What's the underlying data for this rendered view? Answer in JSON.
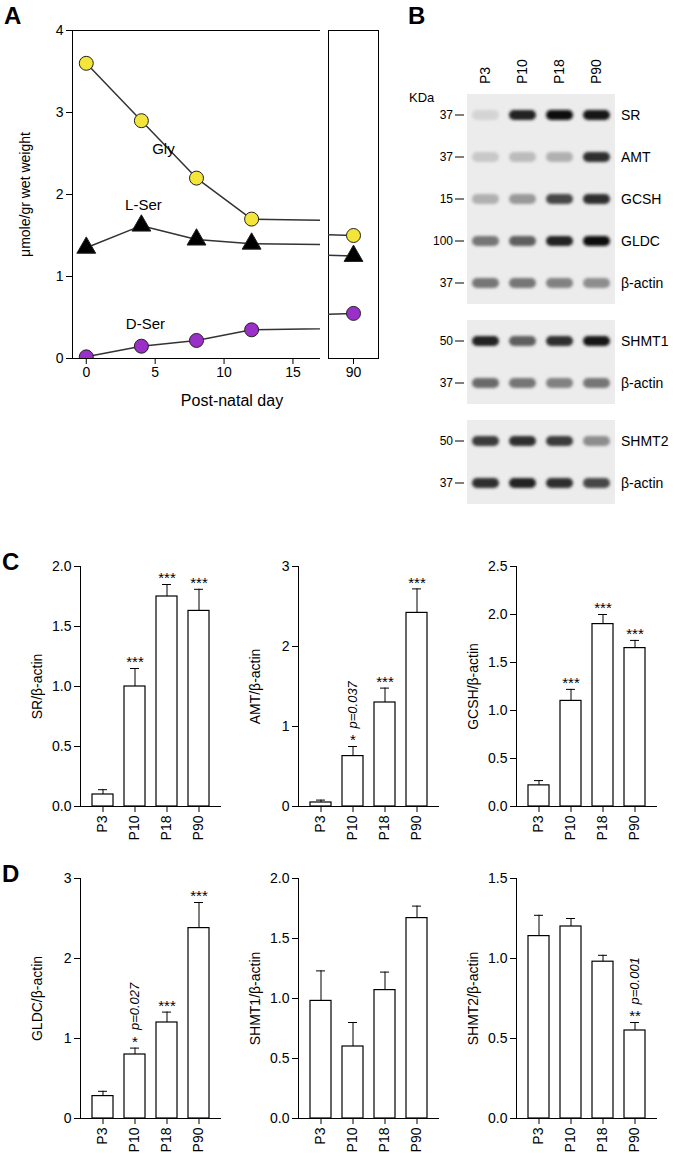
{
  "chart_data": [
    {
      "type": "line",
      "panel": "A",
      "x": [
        0,
        4,
        8,
        12,
        90
      ],
      "xlim": [
        -1,
        17
      ],
      "xticks": [
        0,
        5,
        10,
        15
      ],
      "x_break": {
        "xlim": [
          86,
          94
        ],
        "xticks": [
          90
        ]
      },
      "ylim": [
        0,
        4
      ],
      "yticks": [
        0,
        1,
        2,
        3,
        4
      ],
      "xlabel": "Post-natal day",
      "ylabel": "μmole/gr wet weight",
      "series": [
        {
          "name": "Gly",
          "color": "#f3e53a",
          "marker": "circle",
          "values": [
            3.6,
            2.9,
            2.2,
            1.7,
            1.5
          ]
        },
        {
          "name": "L-Ser",
          "color": "#000000",
          "marker": "triangle",
          "values": [
            1.35,
            1.62,
            1.45,
            1.4,
            1.25
          ]
        },
        {
          "name": "D-Ser",
          "color": "#9b30c8",
          "marker": "circle",
          "values": [
            0.02,
            0.15,
            0.22,
            0.35,
            0.55
          ]
        }
      ]
    },
    {
      "type": "bar",
      "panel": "C",
      "categories": [
        "P3",
        "P10",
        "P18",
        "P90"
      ],
      "values": [
        0.1,
        1.0,
        1.75,
        1.63
      ],
      "errors": [
        0.04,
        0.15,
        0.1,
        0.18
      ],
      "significance": [
        null,
        "***",
        "***",
        "***"
      ],
      "p_values": [
        null,
        null,
        null,
        null
      ],
      "ylabel": "SR/β-actin",
      "ylim": [
        0,
        2
      ],
      "yticks": [
        {
          "value": 0,
          "label": "0.0"
        },
        {
          "value": 0.5,
          "label": "0.5"
        },
        {
          "value": 1,
          "label": "1.0"
        },
        {
          "value": 1.5,
          "label": "1.5"
        },
        {
          "value": 2,
          "label": "2.0"
        }
      ],
      "color": "#ffffff"
    },
    {
      "type": "bar",
      "categories": [
        "P3",
        "P10",
        "P18",
        "P90"
      ],
      "values": [
        0.05,
        0.63,
        1.3,
        2.42
      ],
      "errors": [
        0.03,
        0.12,
        0.18,
        0.3
      ],
      "significance": [
        null,
        "*",
        "***",
        "***"
      ],
      "p_values": [
        null,
        "p=0.037",
        null,
        null
      ],
      "ylabel": "AMT/β-actin",
      "ylim": [
        0,
        3
      ],
      "yticks": [
        0,
        1,
        2,
        3
      ],
      "color": "#ffffff"
    },
    {
      "type": "bar",
      "categories": [
        "P3",
        "P10",
        "P18",
        "P90"
      ],
      "values": [
        0.22,
        1.1,
        1.9,
        1.65
      ],
      "errors": [
        0.05,
        0.12,
        0.1,
        0.08
      ],
      "significance": [
        null,
        "***",
        "***",
        "***"
      ],
      "p_values": [
        null,
        null,
        null,
        null
      ],
      "ylabel": "GCSH/β-actin",
      "ylim": [
        0,
        2.5
      ],
      "yticks": [
        {
          "value": 0,
          "label": "0.0"
        },
        {
          "value": 0.5,
          "label": "0.5"
        },
        {
          "value": 1,
          "label": "1.0"
        },
        {
          "value": 1.5,
          "label": "1.5"
        },
        {
          "value": 2,
          "label": "2.0"
        },
        {
          "value": 2.5,
          "label": "2.5"
        }
      ],
      "color": "#ffffff"
    },
    {
      "type": "bar",
      "panel": "D",
      "categories": [
        "P3",
        "P10",
        "P18",
        "P90"
      ],
      "values": [
        0.28,
        0.8,
        1.2,
        2.38
      ],
      "errors": [
        0.06,
        0.08,
        0.13,
        0.32
      ],
      "significance": [
        null,
        "*",
        "***",
        "***"
      ],
      "p_values": [
        null,
        "p=0.027",
        null,
        null
      ],
      "ylabel": "GLDC/β-actin",
      "ylim": [
        0,
        3
      ],
      "yticks": [
        0,
        1,
        2,
        3
      ],
      "color": "#ffffff"
    },
    {
      "type": "bar",
      "categories": [
        "P3",
        "P10",
        "P18",
        "P90"
      ],
      "values": [
        0.98,
        0.6,
        1.07,
        1.67
      ],
      "errors": [
        0.25,
        0.2,
        0.15,
        0.1
      ],
      "significance": [
        null,
        null,
        null,
        null
      ],
      "p_values": [
        null,
        null,
        null,
        null
      ],
      "ylabel": "SHMT1/β-actin",
      "ylim": [
        0,
        2
      ],
      "yticks": [
        {
          "value": 0,
          "label": "0.0"
        },
        {
          "value": 0.5,
          "label": "0.5"
        },
        {
          "value": 1,
          "label": "1.0"
        },
        {
          "value": 1.5,
          "label": "1.5"
        },
        {
          "value": 2,
          "label": "2.0"
        }
      ],
      "color": "#ffffff"
    },
    {
      "type": "bar",
      "categories": [
        "P3",
        "P10",
        "P18",
        "P90"
      ],
      "values": [
        1.14,
        1.2,
        0.98,
        0.55
      ],
      "errors": [
        0.13,
        0.05,
        0.04,
        0.05
      ],
      "significance": [
        null,
        null,
        null,
        "**"
      ],
      "p_values": [
        null,
        null,
        null,
        "p=0.001"
      ],
      "ylabel": "SHMT2/β-actin",
      "ylim": [
        0,
        1.5
      ],
      "yticks": [
        {
          "value": 0,
          "label": "0.0"
        },
        {
          "value": 0.5,
          "label": "0.5"
        },
        {
          "value": 1,
          "label": "1.0"
        },
        {
          "value": 1.5,
          "label": "1.5"
        }
      ],
      "color": "#ffffff"
    }
  ],
  "blot": {
    "panel": "B",
    "unit_label": "KDa",
    "lanes": [
      "P3",
      "P10",
      "P18",
      "P90"
    ],
    "groups": [
      {
        "rows": [
          {
            "protein": "SR",
            "marker": 37,
            "band_intensity": [
              0.1,
              0.85,
              0.95,
              0.9
            ]
          },
          {
            "protein": "AMT",
            "marker": 37,
            "band_intensity": [
              0.15,
              0.2,
              0.25,
              0.8
            ]
          },
          {
            "protein": "GCSH",
            "marker": 15,
            "band_intensity": [
              0.25,
              0.35,
              0.7,
              0.8
            ]
          },
          {
            "protein": "GLDC",
            "marker": 100,
            "band_intensity": [
              0.5,
              0.6,
              0.85,
              0.95
            ]
          },
          {
            "protein": "β-actin",
            "marker": 37,
            "band_intensity": [
              0.5,
              0.5,
              0.45,
              0.4
            ]
          }
        ]
      },
      {
        "rows": [
          {
            "protein": "SHMT1",
            "marker": 50,
            "band_intensity": [
              0.85,
              0.6,
              0.8,
              0.9
            ]
          },
          {
            "protein": "β-actin",
            "marker": 37,
            "band_intensity": [
              0.55,
              0.5,
              0.45,
              0.5
            ]
          }
        ]
      },
      {
        "rows": [
          {
            "protein": "SHMT2",
            "marker": 50,
            "band_intensity": [
              0.75,
              0.8,
              0.75,
              0.4
            ]
          },
          {
            "protein": "β-actin",
            "marker": 37,
            "band_intensity": [
              0.8,
              0.85,
              0.8,
              0.7
            ]
          }
        ]
      }
    ]
  }
}
